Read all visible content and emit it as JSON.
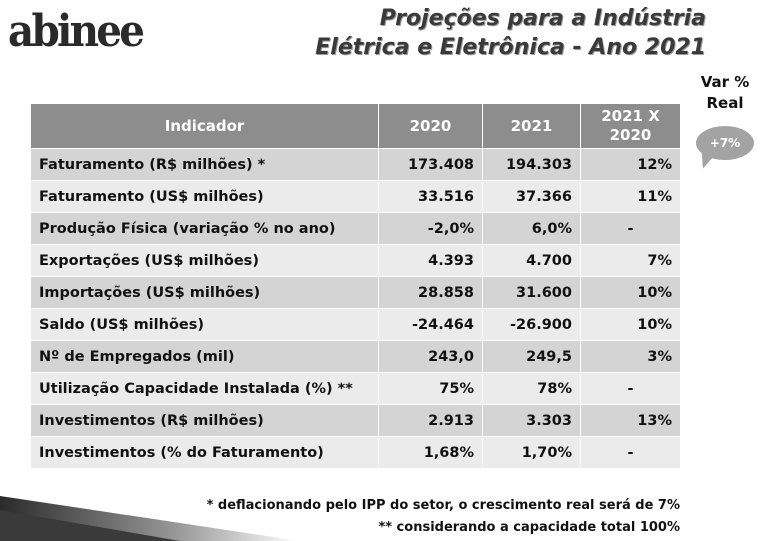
{
  "logo": "abinee",
  "title": {
    "line1": "Projeções para a Indústria",
    "line2": "Elétrica e Eletrônica - Ano 2021"
  },
  "var_label": {
    "line1": "Var %",
    "line2": "Real"
  },
  "bubble": "+7%",
  "table": {
    "headers": [
      "Indicador",
      "2020",
      "2021",
      "2021 X",
      "2020"
    ],
    "rows": [
      [
        "Faturamento (R$ milhões) *",
        "173.408",
        "194.303",
        "12%"
      ],
      [
        "Faturamento (US$ milhões)",
        "33.516",
        "37.366",
        "11%"
      ],
      [
        "Produção Física (variação % no ano)",
        "-2,0%",
        "6,0%",
        "-"
      ],
      [
        "Exportações (US$ milhões)",
        "4.393",
        "4.700",
        "7%"
      ],
      [
        "Importações (US$ milhões)",
        "28.858",
        "31.600",
        "10%"
      ],
      [
        "Saldo (US$ milhões)",
        "-24.464",
        "-26.900",
        "10%"
      ],
      [
        "Nº de Empregados (mil)",
        "243,0",
        "249,5",
        "3%"
      ],
      [
        "Utilização Capacidade Instalada (%) **",
        "75%",
        "78%",
        "-"
      ],
      [
        "Investimentos (R$ milhões)",
        "2.913",
        "3.303",
        "13%"
      ],
      [
        "Investimentos (% do Faturamento)",
        "1,68%",
        "1,70%",
        "-"
      ]
    ]
  },
  "footnotes": [
    "* deflacionando pelo IPP do setor, o crescimento real será de 7%",
    "** considerando a capacidade total 100%"
  ]
}
